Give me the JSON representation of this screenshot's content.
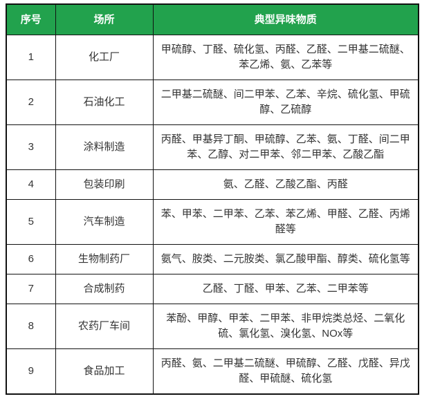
{
  "chart_data": {
    "type": "table",
    "columns": [
      "序号",
      "场所",
      "典型异味物质"
    ],
    "rows": [
      [
        "1",
        "化工厂",
        "甲硫醇、丁醛、硫化氢、丙醛、乙醛、二甲基二硫醚、苯乙烯、氨、乙苯等"
      ],
      [
        "2",
        "石油化工",
        "二甲基二硫醚、间二甲苯、乙苯、辛烷、硫化氢、甲硫醇、乙硫醇"
      ],
      [
        "3",
        "涂料制造",
        "丙醛、甲基异丁酮、甲硫醇、乙苯、氨、丁醛、间二甲苯、乙醇、对二甲苯、邻二甲苯、乙酸乙酯"
      ],
      [
        "4",
        "包装印刷",
        "氨、乙醛、乙酸乙酯、丙醛"
      ],
      [
        "5",
        "汽车制造",
        "苯、甲苯、二甲苯、乙苯、苯乙烯、甲醛、乙醛、丙烯醛等"
      ],
      [
        "6",
        "生物制药厂",
        "氨气、胺类、二元胺类、氯乙酸甲酯、醇类、硫化氢等"
      ],
      [
        "7",
        "合成制药",
        "乙醛、丁醛、甲苯、乙苯、二甲苯等"
      ],
      [
        "8",
        "农药厂车间",
        "苯酚、甲醇、甲苯、二甲苯、非甲烷类总烃、二氧化硫、氯化氢、溴化氢、NOx等"
      ],
      [
        "9",
        "食品加工",
        "丙醛、氨、二甲基二硫醚、甲硫醇、乙醛、戊醛、异戊醛、甲硫醚、硫化氢"
      ]
    ],
    "layout": {
      "grid": true,
      "header_position": "top"
    },
    "colors": {
      "header_bg": "#22A24D",
      "header_text": "#FFFFFF",
      "border": "#111111",
      "body_text": "#333333",
      "page_bg": "#FFFFFF"
    }
  }
}
